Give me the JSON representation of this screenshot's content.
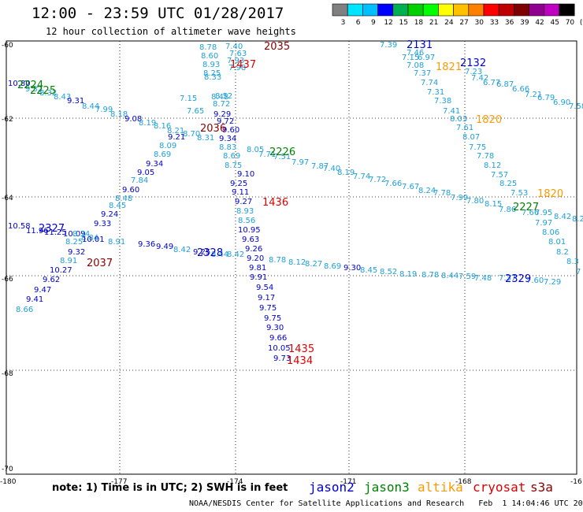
{
  "header": {
    "title": "12:00 - 23:59 UTC 01/28/2017",
    "subtitle": "12 hour collection of altimeter wave heights"
  },
  "legend": {
    "colors": [
      "#808080",
      "#00e5ff",
      "#00bfff",
      "#0000ff",
      "#00b050",
      "#00d000",
      "#00ff00",
      "#ffff00",
      "#ffc000",
      "#ff8000",
      "#ff0000",
      "#c00000",
      "#800000",
      "#900090",
      "#c000c0",
      "#000000"
    ],
    "labels": [
      "3",
      "6",
      "9",
      "12",
      "15",
      "18",
      "21",
      "24",
      "27",
      "30",
      "33",
      "36",
      "39",
      "42",
      "45",
      "70",
      "(ft)"
    ]
  },
  "axes": {
    "lat_labels": [
      "-60",
      "-62",
      "-64",
      "-66",
      "-68",
      "-70"
    ],
    "lon_labels": [
      "-180",
      "-177",
      "-174",
      "-171",
      "-168",
      "-16"
    ]
  },
  "satellites": [
    {
      "name": "jason2",
      "color": "#0000cc"
    },
    {
      "name": "jason3",
      "color": "#008000"
    },
    {
      "name": "altika",
      "color": "#ff9900"
    },
    {
      "name": "cryosat",
      "color": "#dd0000"
    },
    {
      "name": "s3a",
      "color": "#8b0000"
    }
  ],
  "footer": {
    "note": "note: 1) Time is in UTC; 2) SWH is in feet",
    "credit": "NOAA/NESDIS Center for Satellite Applications and Research   Feb  1 14:04:46 UTC 2017"
  },
  "track_labels": [
    {
      "text": "2035",
      "color": "#8b0000"
    },
    {
      "text": "1437",
      "color": "#dd0000"
    },
    {
      "text": "2131",
      "color": "#0000cc"
    },
    {
      "text": "2132",
      "color": "#0000cc"
    },
    {
      "text": "1821",
      "color": "#ff9900"
    },
    {
      "text": "2224",
      "color": "#008000"
    },
    {
      "text": "2225",
      "color": "#008000"
    },
    {
      "text": "1820",
      "color": "#ff9900"
    },
    {
      "text": "2036",
      "color": "#8b0000"
    },
    {
      "text": "2226",
      "color": "#008000"
    },
    {
      "text": "1436",
      "color": "#dd0000"
    },
    {
      "text": "1820",
      "color": "#ff9900"
    },
    {
      "text": "2227",
      "color": "#008000"
    },
    {
      "text": "2327",
      "color": "#0000cc"
    },
    {
      "text": "2328",
      "color": "#0000cc"
    },
    {
      "text": "2037",
      "color": "#8b0000"
    },
    {
      "text": "2329",
      "color": "#0000cc"
    },
    {
      "text": "1435",
      "color": "#dd0000"
    },
    {
      "text": "1434",
      "color": "#dd0000"
    }
  ],
  "observations": [
    {
      "v": "8.78",
      "c": "#1fa0d8"
    },
    {
      "v": "8.60",
      "c": "#1fa0d8"
    },
    {
      "v": "8.93",
      "c": "#1fa0d8"
    },
    {
      "v": "8.25",
      "c": "#1fa0d8"
    },
    {
      "v": "7.40",
      "c": "#1fa0d8"
    },
    {
      "v": "7.63",
      "c": "#1fa0d8"
    },
    {
      "v": "7.93",
      "c": "#1fa0d8"
    },
    {
      "v": "7.98",
      "c": "#1fa0d8"
    },
    {
      "v": "8.33",
      "c": "#1fa0d8"
    },
    {
      "v": "8.48",
      "c": "#1fa0d8"
    },
    {
      "v": "8.52",
      "c": "#1fa0d8"
    },
    {
      "v": "8.72",
      "c": "#1fa0d8"
    },
    {
      "v": "7.65",
      "c": "#1fa0d8"
    },
    {
      "v": "7.15",
      "c": "#1fa0d8"
    },
    {
      "v": "7.39",
      "c": "#1fa0d8"
    },
    {
      "v": "7.46",
      "c": "#1fa0d8"
    },
    {
      "v": "7.15",
      "c": "#1fa0d8"
    },
    {
      "v": "6.97",
      "c": "#1fa0d8"
    },
    {
      "v": "7.08",
      "c": "#1fa0d8"
    },
    {
      "v": "7.37",
      "c": "#1fa0d8"
    },
    {
      "v": "7.74",
      "c": "#1fa0d8"
    },
    {
      "v": "7.31",
      "c": "#1fa0d8"
    },
    {
      "v": "7.38",
      "c": "#1fa0d8"
    },
    {
      "v": "7.41",
      "c": "#1fa0d8"
    },
    {
      "v": "8.03",
      "c": "#1fa0d8"
    },
    {
      "v": "7.61",
      "c": "#1fa0d8"
    },
    {
      "v": "8.07",
      "c": "#1fa0d8"
    },
    {
      "v": "7.75",
      "c": "#1fa0d8"
    },
    {
      "v": "7.78",
      "c": "#1fa0d8"
    },
    {
      "v": "8.12",
      "c": "#1fa0d8"
    },
    {
      "v": "7.57",
      "c": "#1fa0d8"
    },
    {
      "v": "8.25",
      "c": "#1fa0d8"
    },
    {
      "v": "7.53",
      "c": "#1fa0d8"
    },
    {
      "v": "7.23",
      "c": "#1fa0d8"
    },
    {
      "v": "7.42",
      "c": "#1fa0d8"
    },
    {
      "v": "6.77",
      "c": "#1fa0d8"
    },
    {
      "v": "6.87",
      "c": "#1fa0d8"
    },
    {
      "v": "6.66",
      "c": "#1fa0d8"
    },
    {
      "v": "7.21",
      "c": "#1fa0d8"
    },
    {
      "v": "6.79",
      "c": "#1fa0d8"
    },
    {
      "v": "6.90",
      "c": "#1fa0d8"
    },
    {
      "v": "7.58",
      "c": "#1fa0d8"
    },
    {
      "v": "10.80",
      "c": "#0000cc"
    },
    {
      "v": "9.32",
      "c": "#1fa0d8"
    },
    {
      "v": "8.32",
      "c": "#1fa0d8"
    },
    {
      "v": "8.43",
      "c": "#1fa0d8"
    },
    {
      "v": "9.31",
      "c": "#0000cc"
    },
    {
      "v": "8.44",
      "c": "#1fa0d8"
    },
    {
      "v": "7.99",
      "c": "#1fa0d8"
    },
    {
      "v": "8.18",
      "c": "#1fa0d8"
    },
    {
      "v": "9.08",
      "c": "#0000cc"
    },
    {
      "v": "8.19",
      "c": "#1fa0d8"
    },
    {
      "v": "8.16",
      "c": "#1fa0d8"
    },
    {
      "v": "8.21",
      "c": "#1fa0d8"
    },
    {
      "v": "8.70",
      "c": "#1fa0d8"
    },
    {
      "v": "8.31",
      "c": "#1fa0d8"
    },
    {
      "v": "9.21",
      "c": "#0000cc"
    },
    {
      "v": "8.09",
      "c": "#1fa0d8"
    },
    {
      "v": "8.69",
      "c": "#1fa0d8"
    },
    {
      "v": "9.34",
      "c": "#0000cc"
    },
    {
      "v": "9.05",
      "c": "#0000cc"
    },
    {
      "v": "7.84",
      "c": "#1fa0d8"
    },
    {
      "v": "9.60",
      "c": "#0000cc"
    },
    {
      "v": "8.48",
      "c": "#1fa0d8"
    },
    {
      "v": "8.45",
      "c": "#1fa0d8"
    },
    {
      "v": "9.24",
      "c": "#0000cc"
    },
    {
      "v": "9.33",
      "c": "#0000cc"
    },
    {
      "v": "9.29",
      "c": "#0000cc"
    },
    {
      "v": "9.72",
      "c": "#0000cc"
    },
    {
      "v": "9.60",
      "c": "#0000cc"
    },
    {
      "v": "9.34",
      "c": "#0000cc"
    },
    {
      "v": "8.83",
      "c": "#1fa0d8"
    },
    {
      "v": "8.69",
      "c": "#1fa0d8"
    },
    {
      "v": "8.75",
      "c": "#1fa0d8"
    },
    {
      "v": "9.10",
      "c": "#0000cc"
    },
    {
      "v": "9.25",
      "c": "#0000cc"
    },
    {
      "v": "9.11",
      "c": "#0000cc"
    },
    {
      "v": "9.27",
      "c": "#0000cc"
    },
    {
      "v": "8.93",
      "c": "#1fa0d8"
    },
    {
      "v": "8.56",
      "c": "#1fa0d8"
    },
    {
      "v": "10.95",
      "c": "#0000cc"
    },
    {
      "v": "9.63",
      "c": "#0000cc"
    },
    {
      "v": "9.26",
      "c": "#0000cc"
    },
    {
      "v": "9.20",
      "c": "#0000cc"
    },
    {
      "v": "9.81",
      "c": "#0000cc"
    },
    {
      "v": "9.91",
      "c": "#0000cc"
    },
    {
      "v": "9.54",
      "c": "#0000cc"
    },
    {
      "v": "9.17",
      "c": "#0000cc"
    },
    {
      "v": "9.75",
      "c": "#0000cc"
    },
    {
      "v": "9.75",
      "c": "#0000cc"
    },
    {
      "v": "9.30",
      "c": "#0000cc"
    },
    {
      "v": "9.66",
      "c": "#0000cc"
    },
    {
      "v": "10.05",
      "c": "#0000cc"
    },
    {
      "v": "9.73",
      "c": "#0000cc"
    },
    {
      "v": "8.05",
      "c": "#1fa0d8"
    },
    {
      "v": "7.71",
      "c": "#1fa0d8"
    },
    {
      "v": "7.51",
      "c": "#1fa0d8"
    },
    {
      "v": "7.97",
      "c": "#1fa0d8"
    },
    {
      "v": "7.87",
      "c": "#1fa0d8"
    },
    {
      "v": "7.40",
      "c": "#1fa0d8"
    },
    {
      "v": "8.19",
      "c": "#1fa0d8"
    },
    {
      "v": "7.74",
      "c": "#1fa0d8"
    },
    {
      "v": "7.72",
      "c": "#1fa0d8"
    },
    {
      "v": "7.66",
      "c": "#1fa0d8"
    },
    {
      "v": "7.67",
      "c": "#1fa0d8"
    },
    {
      "v": "8.24",
      "c": "#1fa0d8"
    },
    {
      "v": "7.78",
      "c": "#1fa0d8"
    },
    {
      "v": "7.99",
      "c": "#1fa0d8"
    },
    {
      "v": "7.80",
      "c": "#1fa0d8"
    },
    {
      "v": "8.15",
      "c": "#1fa0d8"
    },
    {
      "v": "7.86",
      "c": "#1fa0d8"
    },
    {
      "v": "7.66",
      "c": "#1fa0d8"
    },
    {
      "v": "7.95",
      "c": "#1fa0d8"
    },
    {
      "v": "8.42",
      "c": "#1fa0d8"
    },
    {
      "v": "8.2",
      "c": "#1fa0d8"
    },
    {
      "v": "7.97",
      "c": "#1fa0d8"
    },
    {
      "v": "8.06",
      "c": "#1fa0d8"
    },
    {
      "v": "8.01",
      "c": "#1fa0d8"
    },
    {
      "v": "8.2",
      "c": "#1fa0d8"
    },
    {
      "v": "8.3",
      "c": "#1fa0d8"
    },
    {
      "v": "7",
      "c": "#1fa0d8"
    },
    {
      "v": "10.58",
      "c": "#0000cc"
    },
    {
      "v": "11.96",
      "c": "#0000cc"
    },
    {
      "v": "11.25",
      "c": "#0000cc"
    },
    {
      "v": "10.09",
      "c": "#0000cc"
    },
    {
      "v": "8.34",
      "c": "#1fa0d8"
    },
    {
      "v": "8.84",
      "c": "#1fa0d8"
    },
    {
      "v": "10.01",
      "c": "#0000cc"
    },
    {
      "v": "8.25",
      "c": "#1fa0d8"
    },
    {
      "v": "9.32",
      "c": "#0000cc"
    },
    {
      "v": "8.91",
      "c": "#1fa0d8"
    },
    {
      "v": "10.27",
      "c": "#0000cc"
    },
    {
      "v": "9.62",
      "c": "#0000cc"
    },
    {
      "v": "9.47",
      "c": "#0000cc"
    },
    {
      "v": "9.41",
      "c": "#0000cc"
    },
    {
      "v": "8.66",
      "c": "#1fa0d8"
    },
    {
      "v": "8.91",
      "c": "#1fa0d8"
    },
    {
      "v": "9.36",
      "c": "#0000cc"
    },
    {
      "v": "9.49",
      "c": "#0000cc"
    },
    {
      "v": "8.42",
      "c": "#1fa0d8"
    },
    {
      "v": "9.25",
      "c": "#0000cc"
    },
    {
      "v": "8.44",
      "c": "#1fa0d8"
    },
    {
      "v": "8.42",
      "c": "#1fa0d8"
    },
    {
      "v": "8.78",
      "c": "#1fa0d8"
    },
    {
      "v": "8.12",
      "c": "#1fa0d8"
    },
    {
      "v": "8.27",
      "c": "#1fa0d8"
    },
    {
      "v": "8.69",
      "c": "#1fa0d8"
    },
    {
      "v": "9.30",
      "c": "#0000cc"
    },
    {
      "v": "8.45",
      "c": "#1fa0d8"
    },
    {
      "v": "8.52",
      "c": "#1fa0d8"
    },
    {
      "v": "8.19",
      "c": "#1fa0d8"
    },
    {
      "v": "8.78",
      "c": "#1fa0d8"
    },
    {
      "v": "8.44",
      "c": "#1fa0d8"
    },
    {
      "v": "7.59",
      "c": "#1fa0d8"
    },
    {
      "v": "7.48",
      "c": "#1fa0d8"
    },
    {
      "v": "7.37",
      "c": "#1fa0d8"
    },
    {
      "v": "7.60",
      "c": "#1fa0d8"
    },
    {
      "v": "7.29",
      "c": "#1fa0d8"
    }
  ]
}
